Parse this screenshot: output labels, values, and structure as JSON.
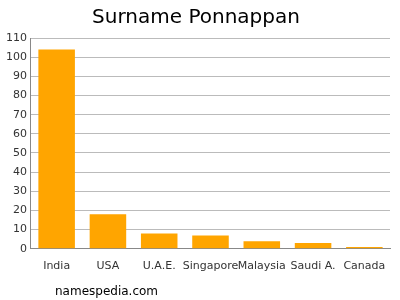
{
  "chart_data": {
    "type": "bar",
    "title": "Surname Ponnappan",
    "categories": [
      "India",
      "USA",
      "U.A.E.",
      "Singapore",
      "Malaysia",
      "Saudi A.",
      "Canada"
    ],
    "values": [
      104,
      18,
      8,
      7,
      4,
      3,
      1
    ],
    "color": "#ffa500",
    "ylim": [
      0,
      110
    ],
    "yticks": [
      0,
      10,
      20,
      30,
      40,
      50,
      60,
      70,
      80,
      90,
      100,
      110
    ],
    "grid": true,
    "annotations": [
      "namespedia.com"
    ]
  }
}
